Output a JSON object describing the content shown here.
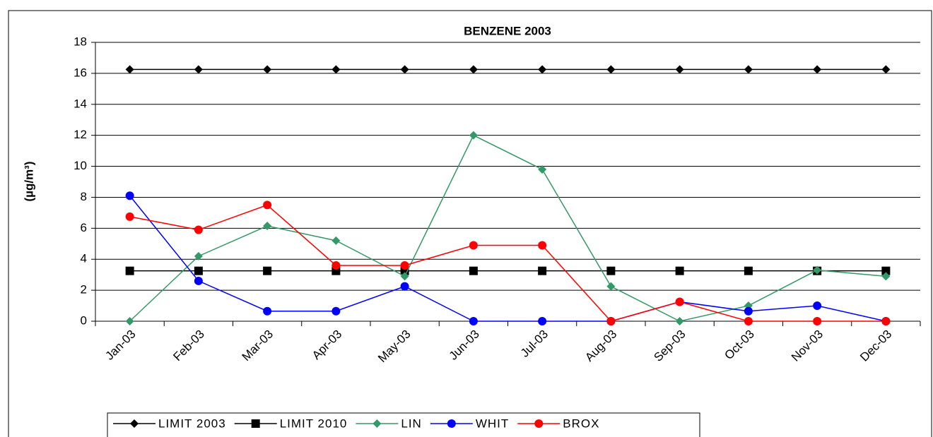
{
  "chart_data": {
    "type": "line",
    "title": "BENZENE 2003",
    "y_label": "(µg/m³)",
    "categories": [
      "Jan-03",
      "Feb-03",
      "Mar-03",
      "Apr-03",
      "May-03",
      "Jun-03",
      "Jul-03",
      "Aug-03",
      "Sep-03",
      "Oct-03",
      "Nov-03",
      "Dec-03"
    ],
    "series": [
      {
        "name": "LIMIT 2003",
        "color": "#000000",
        "marker": "diamond",
        "values": [
          16.25,
          16.25,
          16.25,
          16.25,
          16.25,
          16.25,
          16.25,
          16.25,
          16.25,
          16.25,
          16.25,
          16.25
        ]
      },
      {
        "name": "LIMIT 2010",
        "color": "#000000",
        "marker": "square",
        "values": [
          3.25,
          3.25,
          3.25,
          3.25,
          3.25,
          3.25,
          3.25,
          3.25,
          3.25,
          3.25,
          3.25,
          3.25
        ]
      },
      {
        "name": "LIN",
        "color": "#339966",
        "marker": "diamond",
        "values": [
          0,
          4.2,
          6.15,
          5.2,
          2.9,
          12,
          9.8,
          2.25,
          0,
          1.0,
          3.3,
          2.9
        ]
      },
      {
        "name": "WHIT",
        "color": "#0000ff",
        "marker": "circle",
        "values": [
          8.1,
          2.6,
          0.65,
          0.65,
          2.25,
          0,
          0,
          0,
          1.25,
          0.65,
          1.0,
          0
        ]
      },
      {
        "name": "BROX",
        "color": "#ff0000",
        "marker": "circle",
        "values": [
          6.75,
          5.9,
          7.5,
          3.6,
          3.6,
          4.9,
          4.9,
          0,
          1.25,
          0,
          0,
          0
        ]
      }
    ],
    "ylim": [
      0,
      18
    ],
    "yticks": [
      0,
      2,
      4,
      6,
      8,
      10,
      12,
      14,
      16,
      18
    ],
    "grid": true,
    "legend": "bottom"
  }
}
